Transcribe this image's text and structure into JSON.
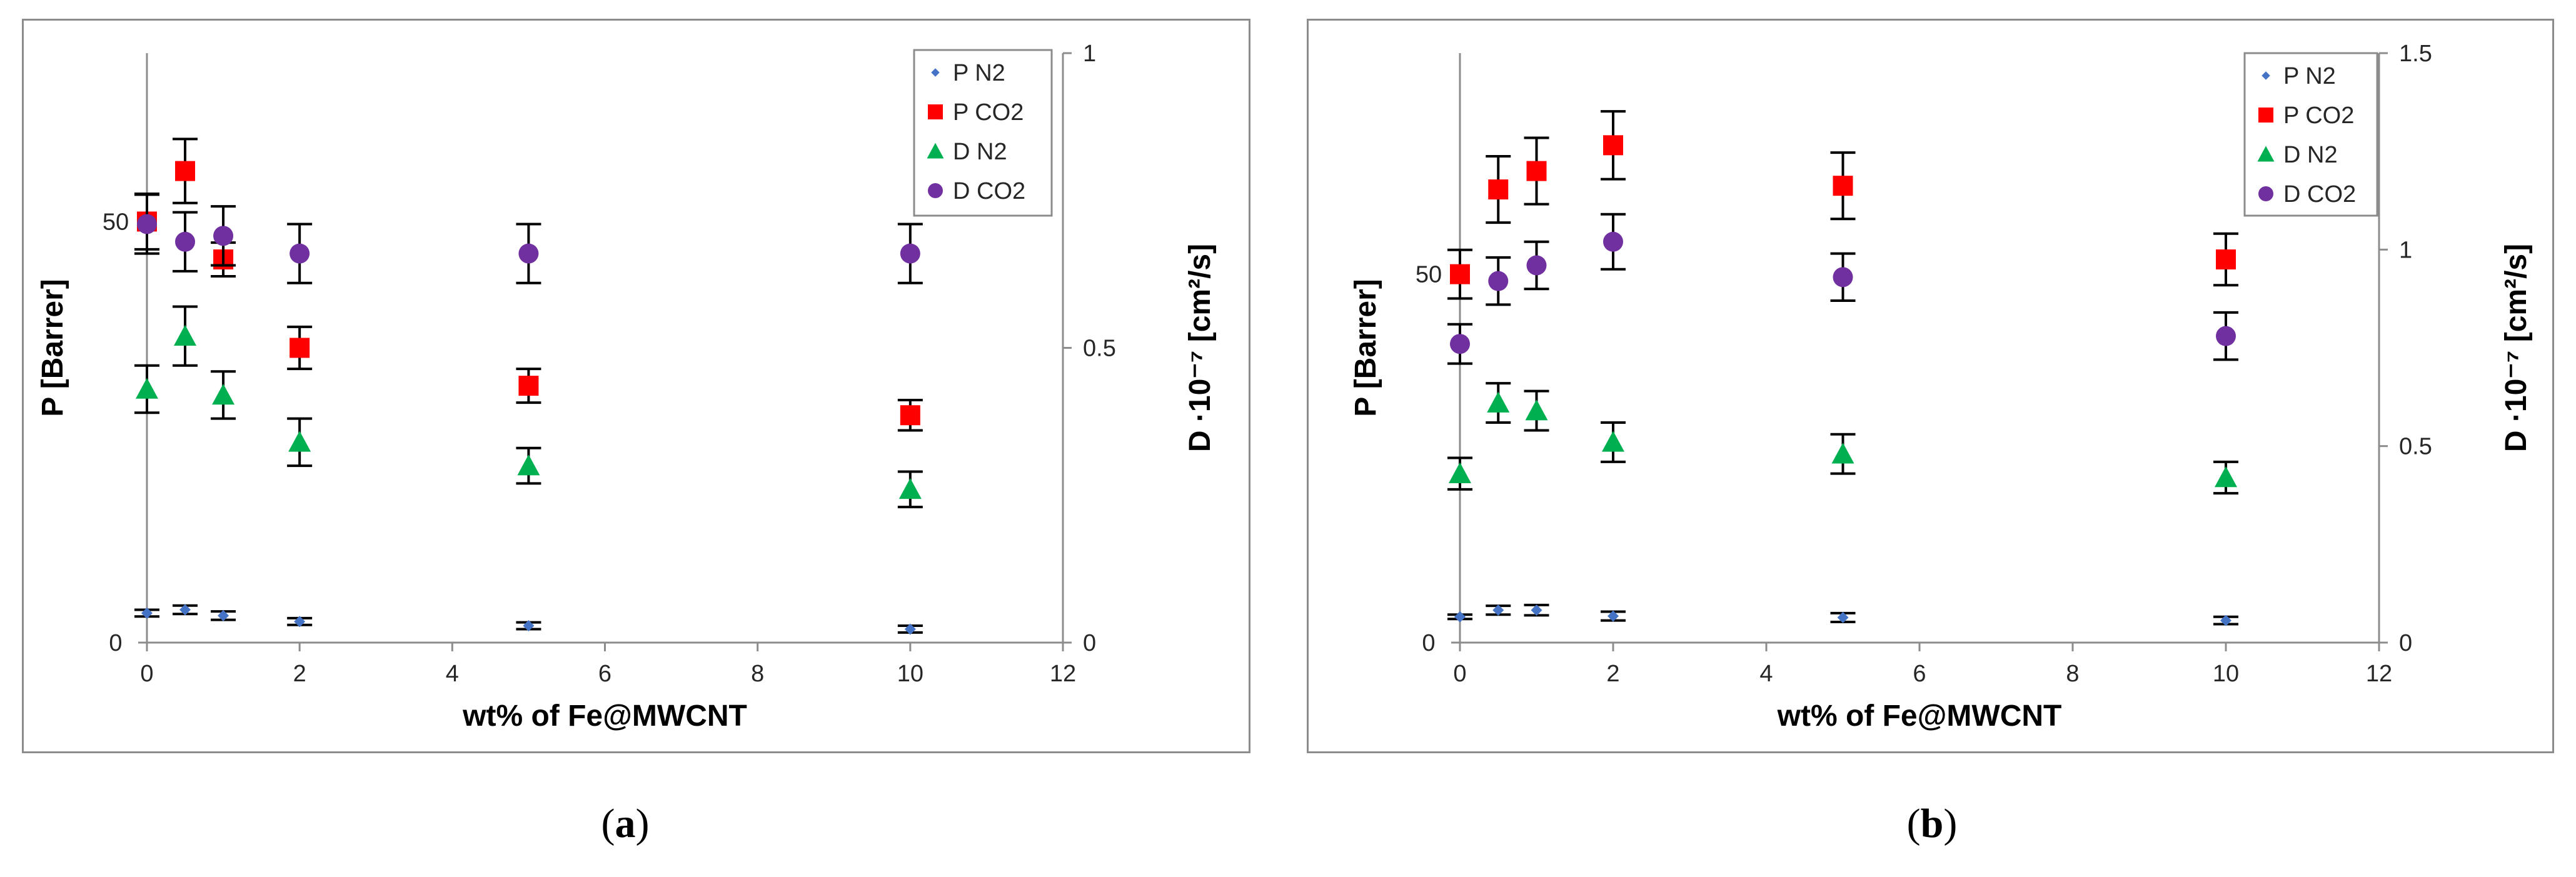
{
  "chart_data": [
    {
      "panel": "(a)",
      "type": "scatter",
      "xlabel": "wt% of Fe@MWCNT",
      "ylabel_left": "P [Barrer]",
      "ylabel_right": "D ·10⁻⁷ [cm²/s]",
      "xlim": [
        0,
        12
      ],
      "x_ticks": [
        0,
        2,
        4,
        6,
        8,
        10,
        12
      ],
      "y_left_lim": [
        0,
        70
      ],
      "y_left_ticks": [
        0,
        50
      ],
      "y_right_lim": [
        0,
        1
      ],
      "y_right_ticks": [
        0,
        0.5,
        1
      ],
      "legend_position": "top-right",
      "series": [
        {
          "name": "P N2",
          "axis": "left",
          "marker": "diamond",
          "color": "#4472c4",
          "x": [
            0,
            0.5,
            1,
            2,
            5,
            10
          ],
          "y": [
            3.5,
            3.9,
            3.2,
            2.5,
            2.0,
            1.6
          ],
          "err": [
            0.4,
            0.5,
            0.5,
            0.4,
            0.4,
            0.4
          ]
        },
        {
          "name": "P CO2",
          "axis": "left",
          "marker": "square",
          "color": "#ff0000",
          "x": [
            0,
            0.5,
            1,
            2,
            5,
            10
          ],
          "y": [
            50.0,
            56.0,
            45.5,
            35.0,
            30.5,
            27.0
          ],
          "err": [
            3.3,
            3.8,
            2.0,
            2.5,
            2.0,
            1.8
          ]
        },
        {
          "name": "D N2",
          "axis": "right",
          "marker": "triangle",
          "color": "#00b050",
          "x": [
            0,
            0.5,
            1,
            2,
            5,
            10
          ],
          "y": [
            0.43,
            0.52,
            0.42,
            0.34,
            0.3,
            0.26
          ],
          "err": [
            0.04,
            0.05,
            0.04,
            0.04,
            0.03,
            0.03
          ]
        },
        {
          "name": "D CO2",
          "axis": "right",
          "marker": "circle",
          "color": "#7030a0",
          "x": [
            0,
            0.5,
            1,
            2,
            5,
            10
          ],
          "y": [
            0.71,
            0.68,
            0.69,
            0.66,
            0.66,
            0.66
          ],
          "err": [
            0.05,
            0.05,
            0.05,
            0.05,
            0.05,
            0.05
          ]
        }
      ]
    },
    {
      "panel": "(b)",
      "type": "scatter",
      "xlabel": "wt% of Fe@MWCNT",
      "ylabel_left": "P [Barrer]",
      "ylabel_right": "D ·10⁻⁷ [cm²/s]",
      "xlim": [
        0,
        12
      ],
      "x_ticks": [
        0,
        2,
        4,
        6,
        8,
        10,
        12
      ],
      "y_left_lim": [
        0,
        80
      ],
      "y_left_ticks": [
        0,
        50
      ],
      "y_right_lim": [
        0,
        1.5
      ],
      "y_right_ticks": [
        0,
        0.5,
        1,
        1.5
      ],
      "legend_position": "top-right",
      "series": [
        {
          "name": "P N2",
          "axis": "left",
          "marker": "diamond",
          "color": "#4472c4",
          "x": [
            0,
            0.5,
            1,
            2,
            5,
            10
          ],
          "y": [
            3.5,
            4.4,
            4.4,
            3.6,
            3.4,
            3.0
          ],
          "err": [
            0.3,
            0.6,
            0.7,
            0.6,
            0.6,
            0.5
          ]
        },
        {
          "name": "P CO2",
          "axis": "left",
          "marker": "square",
          "color": "#ff0000",
          "x": [
            0,
            0.5,
            1,
            2,
            5,
            10
          ],
          "y": [
            50.0,
            61.5,
            64.0,
            67.5,
            62.0,
            52.0
          ],
          "err": [
            3.3,
            4.5,
            4.5,
            4.6,
            4.5,
            3.5
          ]
        },
        {
          "name": "D N2",
          "axis": "right",
          "marker": "triangle",
          "color": "#00b050",
          "x": [
            0,
            0.5,
            1,
            2,
            5,
            10
          ],
          "y": [
            0.43,
            0.61,
            0.59,
            0.51,
            0.48,
            0.42
          ],
          "err": [
            0.04,
            0.05,
            0.05,
            0.05,
            0.05,
            0.04
          ]
        },
        {
          "name": "D CO2",
          "axis": "right",
          "marker": "circle",
          "color": "#7030a0",
          "x": [
            0,
            0.5,
            1,
            2,
            5,
            10
          ],
          "y": [
            0.76,
            0.92,
            0.96,
            1.02,
            0.93,
            0.78
          ],
          "err": [
            0.05,
            0.06,
            0.06,
            0.07,
            0.06,
            0.06
          ]
        }
      ]
    }
  ],
  "captions": {
    "a": "a",
    "b": "b"
  }
}
